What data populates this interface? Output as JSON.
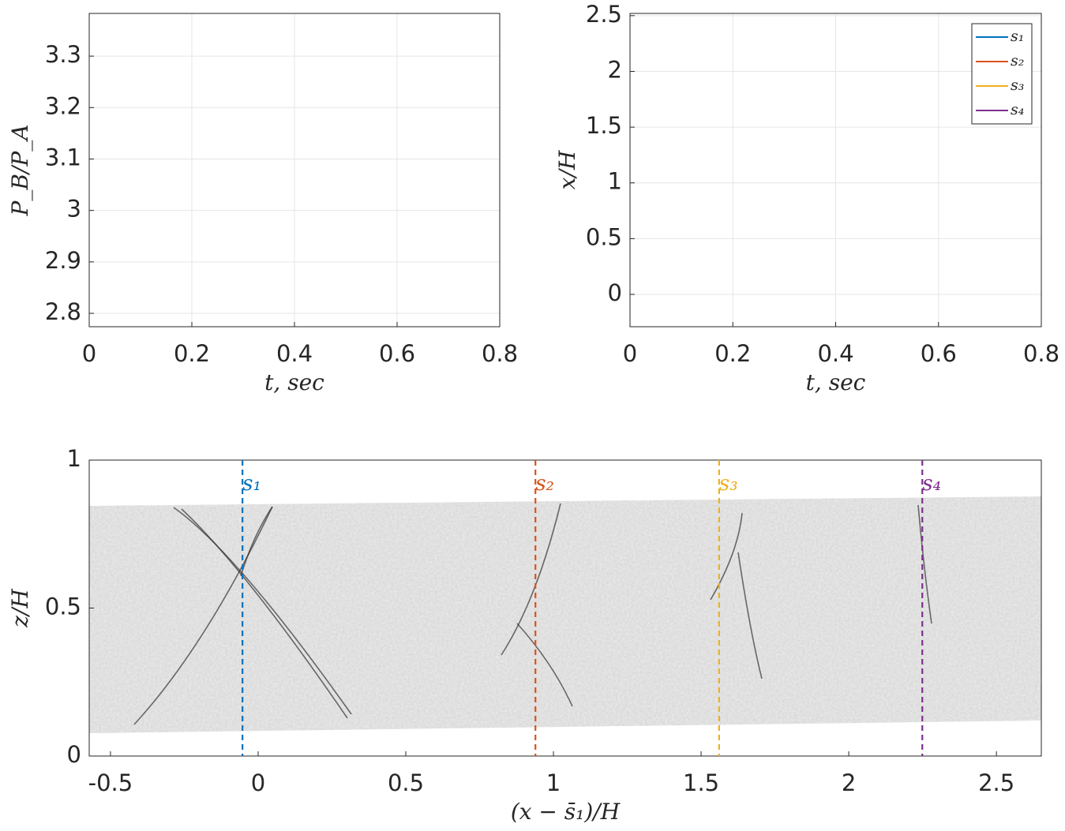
{
  "chart_data": [
    {
      "type": "line",
      "xlabel": "t, sec",
      "ylabel": "P_B/P_A",
      "xlim": [
        0,
        0.8
      ],
      "xticks": [
        0,
        0.2,
        0.4,
        0.6,
        0.8
      ],
      "ylim": [
        2.774,
        3.383
      ],
      "yticks": [
        2.8,
        2.9,
        3,
        3.1,
        3.2,
        3.3
      ],
      "grid": true,
      "x": [],
      "series": []
    },
    {
      "type": "line",
      "xlabel": "t, sec",
      "ylabel": "x/H",
      "xlim": [
        0,
        0.8
      ],
      "xticks": [
        0,
        0.2,
        0.4,
        0.6,
        0.8
      ],
      "ylim": [
        -0.29,
        2.52
      ],
      "yticks": [
        0,
        0.5,
        1,
        1.5,
        2,
        2.5
      ],
      "grid": true,
      "legend": "upper right",
      "x": [],
      "series": [
        {
          "name": "s₁",
          "color": "#0072bd",
          "values": []
        },
        {
          "name": "s₂",
          "color": "#d95319",
          "values": []
        },
        {
          "name": "s₃",
          "color": "#edb120",
          "values": []
        },
        {
          "name": "s₄",
          "color": "#7e2f8e",
          "values": []
        }
      ]
    },
    {
      "type": "image",
      "xlabel": "(x − s̄₁)/H",
      "ylabel": "z/H",
      "xlim": [
        -0.572,
        2.652
      ],
      "xticks": [
        -0.5,
        0,
        0.5,
        1,
        1.5,
        2,
        2.5
      ],
      "ylim": [
        0,
        1
      ],
      "yticks": [
        0,
        0.5,
        1
      ],
      "grid": false,
      "vlines": [
        {
          "name": "s₁",
          "color": "#0072bd",
          "x": -0.053
        },
        {
          "name": "s₂",
          "color": "#d95319",
          "x": 0.939
        },
        {
          "name": "s₃",
          "color": "#edb120",
          "x": 1.561
        },
        {
          "name": "s₄",
          "color": "#7e2f8e",
          "x": 2.249
        }
      ]
    }
  ]
}
